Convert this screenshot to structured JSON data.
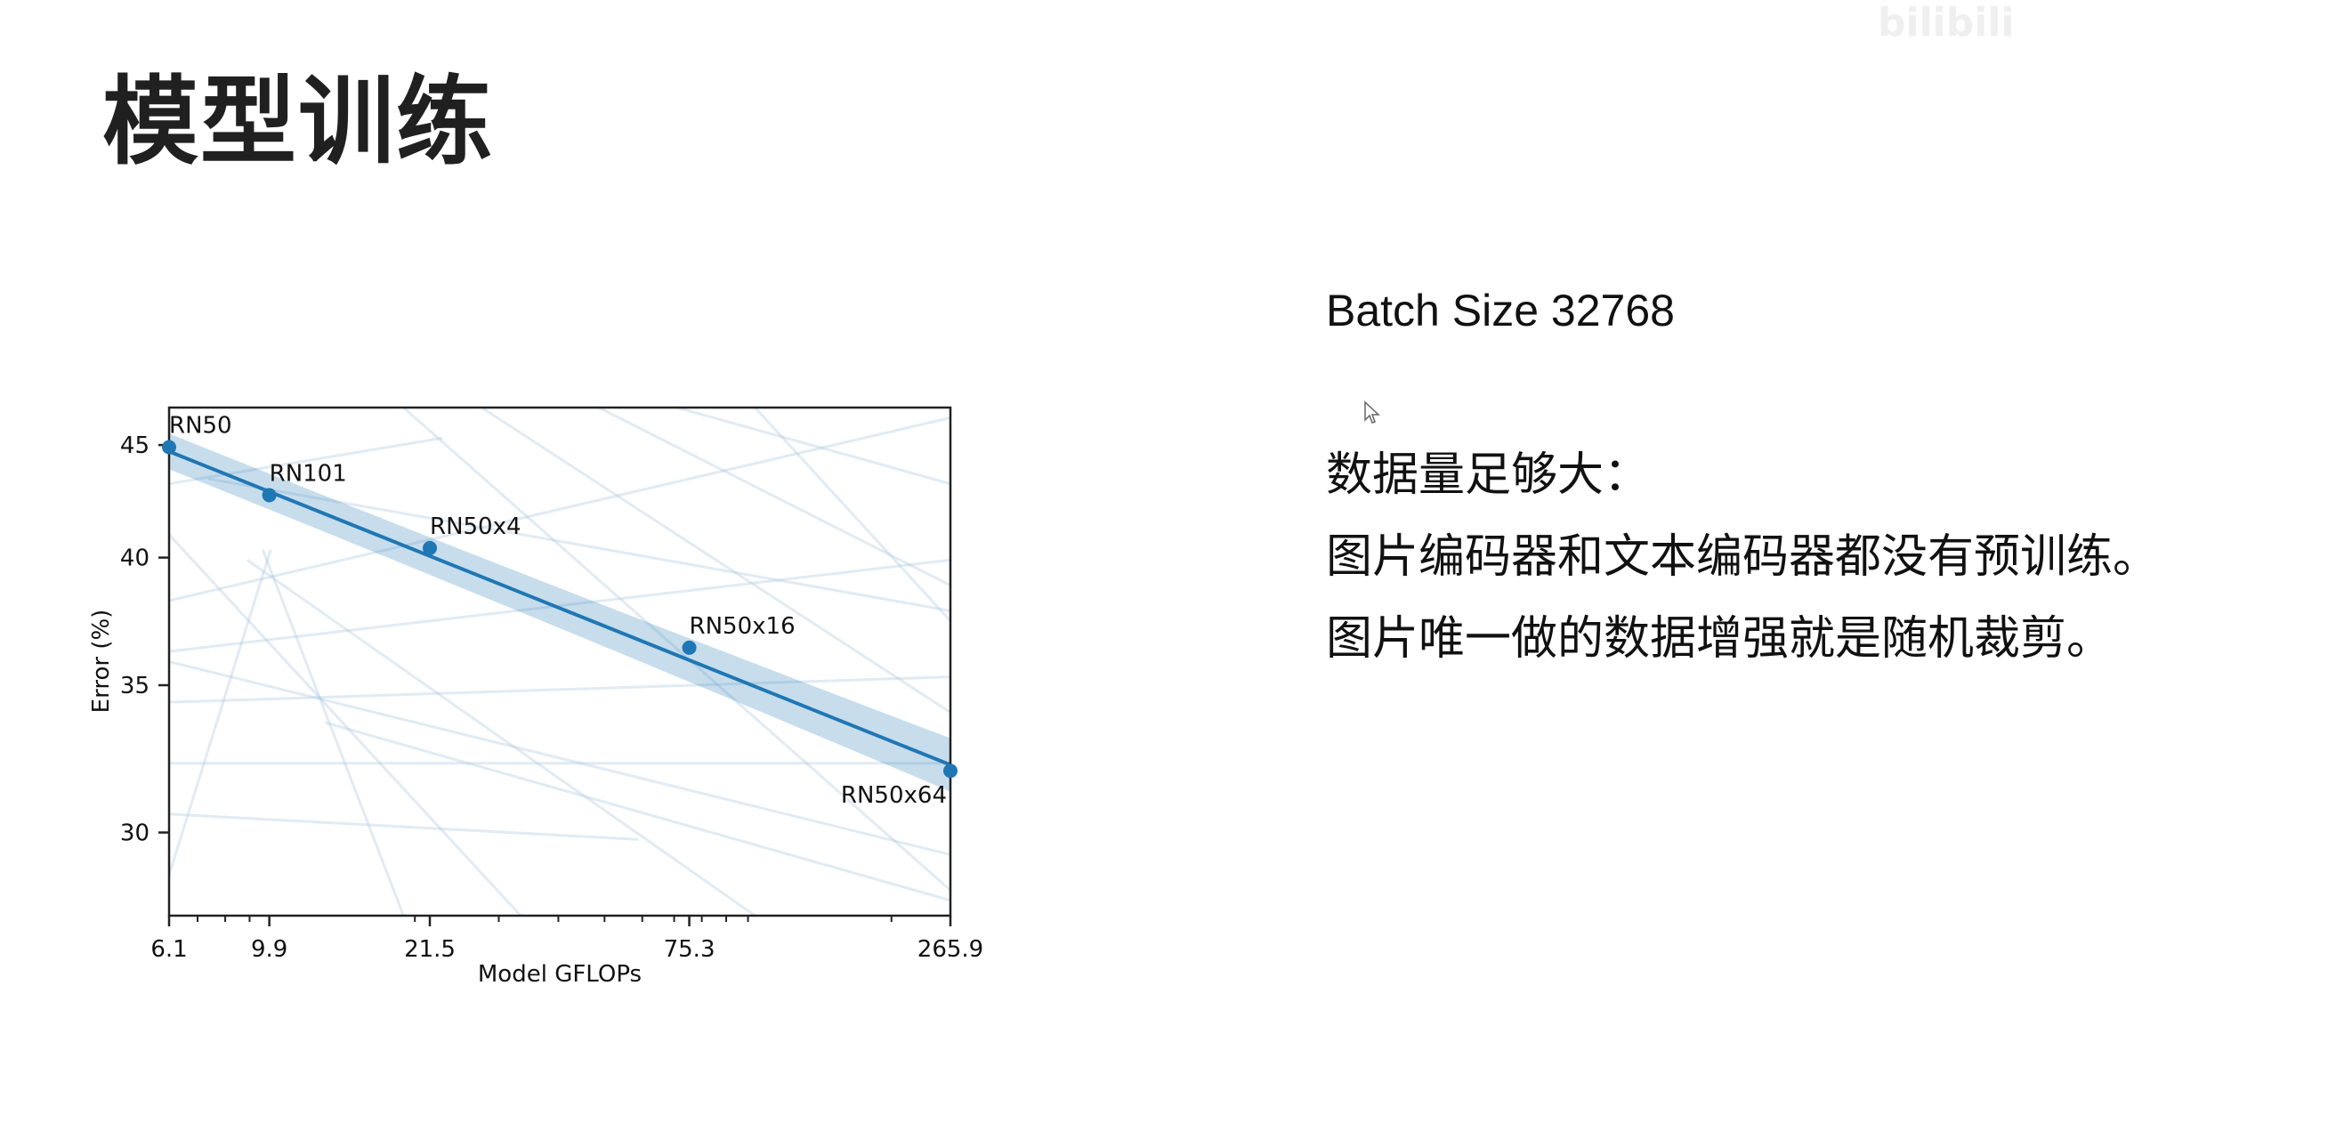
{
  "slide": {
    "title": "模型训练"
  },
  "right_panel": {
    "batch_line": "Batch Size 32768",
    "text_lines": [
      "数据量足够大：",
      "图片编码器和文本编码器都没有预训练。",
      "图片唯一做的数据增强就是随机裁剪。"
    ]
  },
  "watermark": {
    "text": "bilibili"
  },
  "chart_data": {
    "type": "line",
    "xlabel": "Model GFLOPs",
    "ylabel": "Error (%)",
    "x_scale": "log",
    "x_ticks": [
      6.1,
      9.9,
      21.5,
      75.3,
      265.9
    ],
    "x_tick_labels": [
      "6.1",
      "9.9",
      "21.5",
      "75.3",
      "265.9"
    ],
    "y_ticks": [
      30,
      35,
      40,
      45
    ],
    "y_tick_labels": [
      "30",
      "35",
      "40",
      "45"
    ],
    "xlim": [
      6.1,
      265.9
    ],
    "ylim": [
      27.5,
      46.8
    ],
    "grid": false,
    "series": [
      {
        "points": [
          {
            "label": "RN50",
            "x": 6.1,
            "y": 44.9
          },
          {
            "label": "RN101",
            "x": 9.9,
            "y": 42.7
          },
          {
            "label": "RN50x4",
            "x": 21.5,
            "y": 40.4
          },
          {
            "label": "RN50x16",
            "x": 75.3,
            "y": 36.4
          },
          {
            "label": "RN50x64",
            "x": 265.9,
            "y": 32.0
          }
        ],
        "trend": {
          "start": [
            6.1,
            44.7
          ],
          "end": [
            265.9,
            32.2
          ]
        },
        "confidence_band": true,
        "color": "#1f77b4"
      }
    ],
    "colors": {
      "main": "#1f77b4",
      "band": "#1f77b4",
      "background_lines": "#a9c6de"
    }
  }
}
